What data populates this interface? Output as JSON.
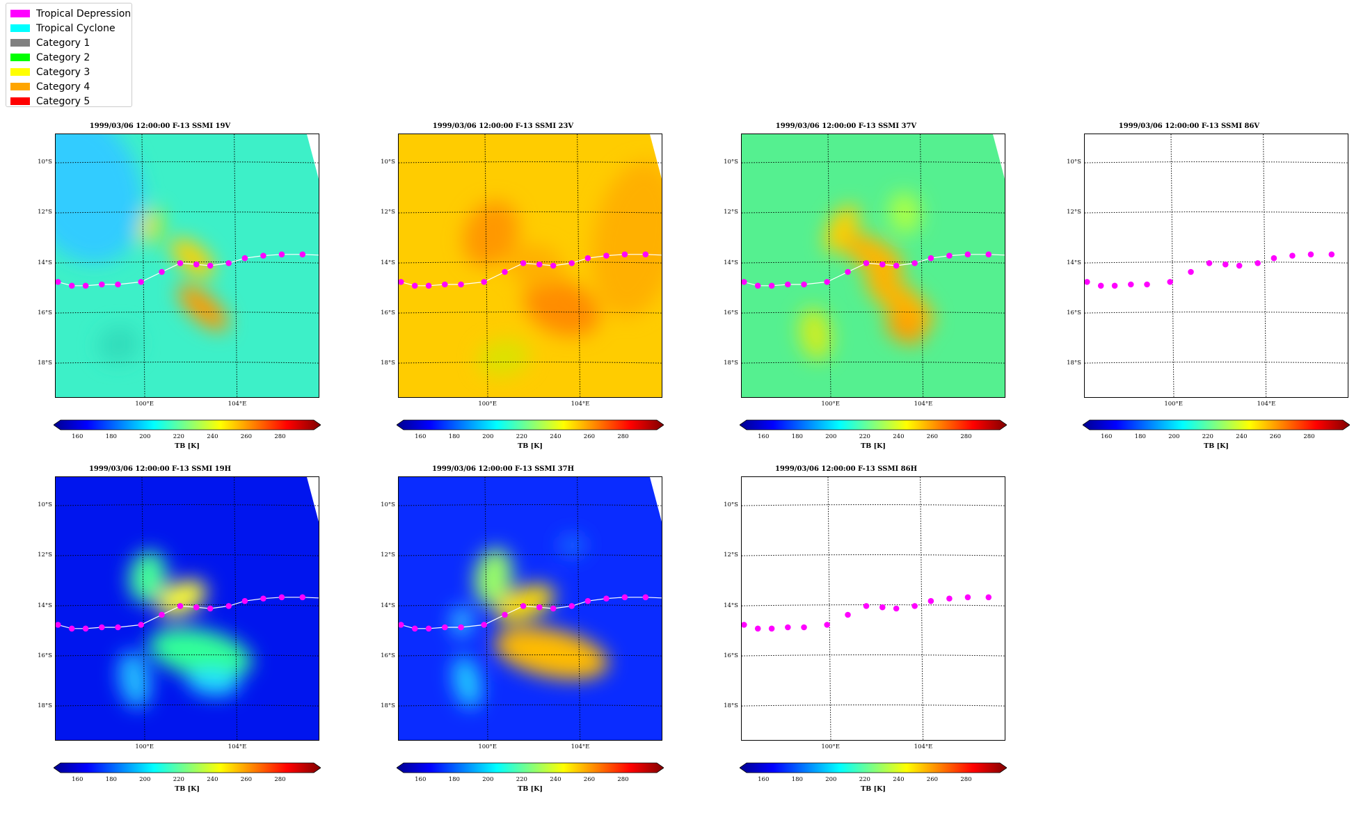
{
  "legend": {
    "items": [
      {
        "label": "Tropical Depression",
        "color": "#ff00ff"
      },
      {
        "label": "Tropical Cyclone",
        "color": "#00ffff"
      },
      {
        "label": "Category 1",
        "color": "#808080"
      },
      {
        "label": "Category 2",
        "color": "#00ff00"
      },
      {
        "label": "Category 3",
        "color": "#ffff00"
      },
      {
        "label": "Category 4",
        "color": "#ffa500"
      },
      {
        "label": "Category 5",
        "color": "#ff0000"
      }
    ]
  },
  "track": {
    "color": "#ff00ff",
    "line_color": "#ffffff",
    "points": [
      {
        "lon": 96.3,
        "lat": -14.8
      },
      {
        "lon": 96.9,
        "lat": -14.95
      },
      {
        "lon": 97.5,
        "lat": -14.95
      },
      {
        "lon": 98.2,
        "lat": -14.9
      },
      {
        "lon": 98.9,
        "lat": -14.9
      },
      {
        "lon": 99.9,
        "lat": -14.8
      },
      {
        "lon": 100.8,
        "lat": -14.4
      },
      {
        "lon": 101.6,
        "lat": -14.05
      },
      {
        "lon": 102.3,
        "lat": -14.1
      },
      {
        "lon": 102.9,
        "lat": -14.15
      },
      {
        "lon": 103.7,
        "lat": -14.05
      },
      {
        "lon": 104.4,
        "lat": -13.85
      },
      {
        "lon": 105.2,
        "lat": -13.75
      },
      {
        "lon": 106.0,
        "lat": -13.7
      },
      {
        "lon": 106.9,
        "lat": -13.7
      }
    ]
  },
  "colorbar": {
    "ticks": [
      "160",
      "180",
      "200",
      "220",
      "240",
      "260",
      "280"
    ],
    "label": "TB [K]",
    "colors": [
      "#00008f",
      "#0000ff",
      "#0080ff",
      "#00ffff",
      "#80ff80",
      "#ffff00",
      "#ff8000",
      "#ff0000",
      "#800000"
    ]
  },
  "axes": {
    "lat_ticks": [
      "10°S",
      "12°S",
      "14°S",
      "16°S",
      "18°S"
    ],
    "lon_ticks": [
      "100°E",
      "104°E"
    ]
  },
  "chart_data": [
    {
      "type": "heatmap",
      "title": "1999/03/06 12:00:00  F-13 SSMI 19V",
      "base_tb": 215,
      "pattern": "v19",
      "has_data": true,
      "draw_line": true,
      "xlabel": "",
      "ylabel": "",
      "colorbar_label": "TB [K]",
      "clim": [
        150,
        300
      ]
    },
    {
      "type": "heatmap",
      "title": "1999/03/06 12:00:00  F-13 SSMI 23V",
      "base_tb": 245,
      "pattern": "v23",
      "has_data": true,
      "draw_line": true,
      "xlabel": "",
      "ylabel": "",
      "colorbar_label": "TB [K]",
      "clim": [
        150,
        300
      ]
    },
    {
      "type": "heatmap",
      "title": "1999/03/06 12:00:00  F-13 SSMI 37V",
      "base_tb": 230,
      "pattern": "v37",
      "has_data": true,
      "draw_line": true,
      "xlabel": "",
      "ylabel": "",
      "colorbar_label": "TB [K]",
      "clim": [
        150,
        300
      ]
    },
    {
      "type": "heatmap",
      "title": "1999/03/06 12:00:00  F-13 SSMI 86V",
      "has_data": false,
      "draw_line": false,
      "xlabel": "",
      "ylabel": "",
      "colorbar_label": "TB [K]",
      "clim": [
        150,
        300
      ]
    },
    {
      "type": "heatmap",
      "title": "1999/03/06 12:00:00  F-13 SSMI 19H",
      "base_tb": 165,
      "pattern": "h19",
      "has_data": true,
      "draw_line": true,
      "xlabel": "",
      "ylabel": "",
      "colorbar_label": "TB [K]",
      "clim": [
        150,
        300
      ]
    },
    {
      "type": "heatmap",
      "title": "1999/03/06 12:00:00  F-13 SSMI 37H",
      "base_tb": 180,
      "pattern": "h37",
      "has_data": true,
      "draw_line": true,
      "xlabel": "",
      "ylabel": "",
      "colorbar_label": "TB [K]",
      "clim": [
        150,
        300
      ]
    },
    {
      "type": "heatmap",
      "title": "1999/03/06 12:00:00  F-13 SSMI 86H",
      "has_data": false,
      "draw_line": false,
      "xlabel": "",
      "ylabel": "",
      "colorbar_label": "TB [K]",
      "clim": [
        150,
        300
      ]
    }
  ]
}
